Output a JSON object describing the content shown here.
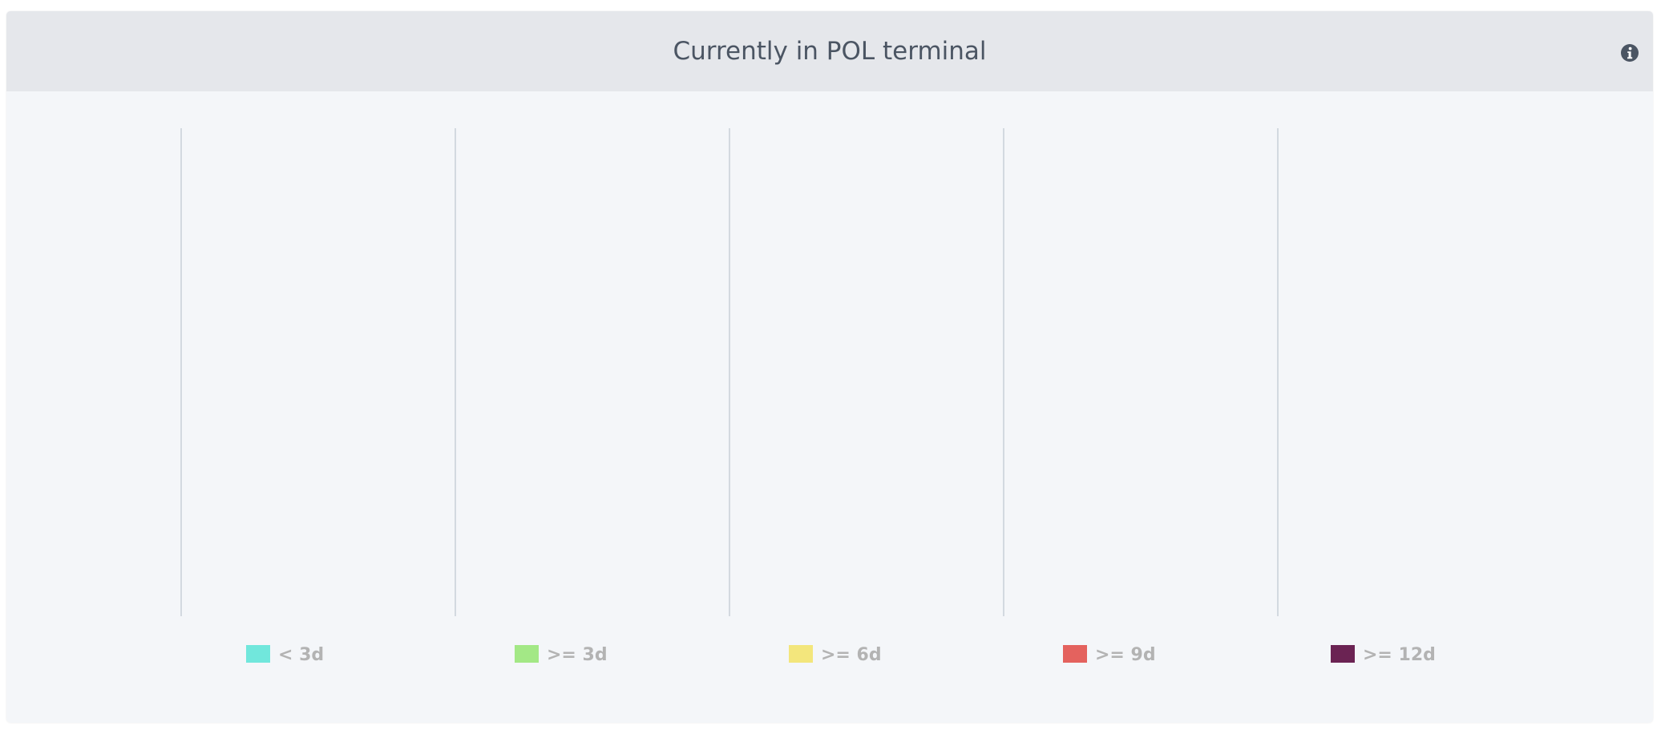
{
  "card": {
    "title": "Currently in POL terminal",
    "info_icon": "info-circle-icon"
  },
  "chart_data": {
    "type": "bar",
    "title": "Currently in POL terminal",
    "categories": [],
    "series": [
      {
        "name": "< 3d",
        "color": "#71e7dc",
        "values": []
      },
      {
        "name": ">= 3d",
        "color": "#a3e886",
        "values": []
      },
      {
        "name": ">= 6d",
        "color": "#f3e67c",
        "values": []
      },
      {
        "name": ">= 9d",
        "color": "#e4625e",
        "values": []
      },
      {
        "name": ">= 12d",
        "color": "#6b2353",
        "values": []
      }
    ],
    "stacked": true,
    "grid": true,
    "legend_position": "bottom",
    "colors": {
      "gridline": "#c8cfd8",
      "legend_text": "#b3b3b3"
    }
  }
}
